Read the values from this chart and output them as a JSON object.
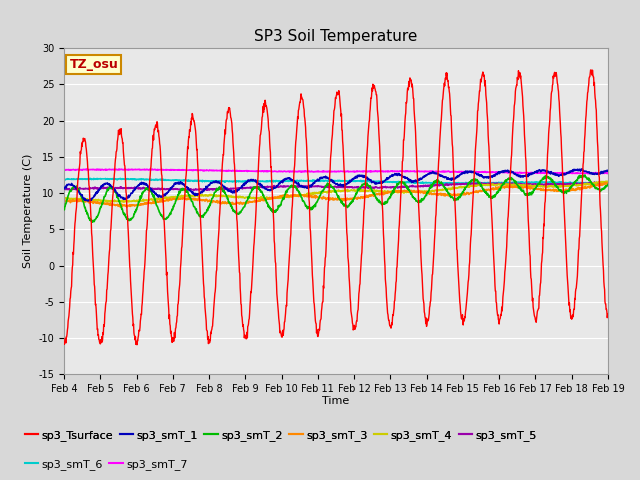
{
  "title": "SP3 Soil Temperature",
  "ylabel": "Soil Temperature (C)",
  "xlabel": "Time",
  "tz_label": "TZ_osu",
  "ylim": [
    -15,
    30
  ],
  "xlim": [
    0,
    15
  ],
  "tick_labels": [
    "Feb 4",
    "Feb 5",
    "Feb 6",
    "Feb 7",
    "Feb 8",
    "Feb 9",
    "Feb 10",
    "Feb 11",
    "Feb 12",
    "Feb 13",
    "Feb 14",
    "Feb 15",
    "Feb 16",
    "Feb 17",
    "Feb 18",
    "Feb 19"
  ],
  "yticks": [
    -15,
    -10,
    -5,
    0,
    5,
    10,
    15,
    20,
    25,
    30
  ],
  "bg_color": "#d8d8d8",
  "plot_bg_color": "#e8e8e8",
  "grid_color": "#ffffff",
  "series_colors": {
    "sp3_Tsurface": "#ff0000",
    "sp3_smT_1": "#0000bb",
    "sp3_smT_2": "#00bb00",
    "sp3_smT_3": "#ff8800",
    "sp3_smT_4": "#cccc00",
    "sp3_smT_5": "#9900aa",
    "sp3_smT_6": "#00cccc",
    "sp3_smT_7": "#ff00ff"
  },
  "n_days": 15,
  "pts_per_day": 96,
  "title_fontsize": 11,
  "axis_fontsize": 8,
  "tick_fontsize": 7,
  "legend_fontsize": 8
}
